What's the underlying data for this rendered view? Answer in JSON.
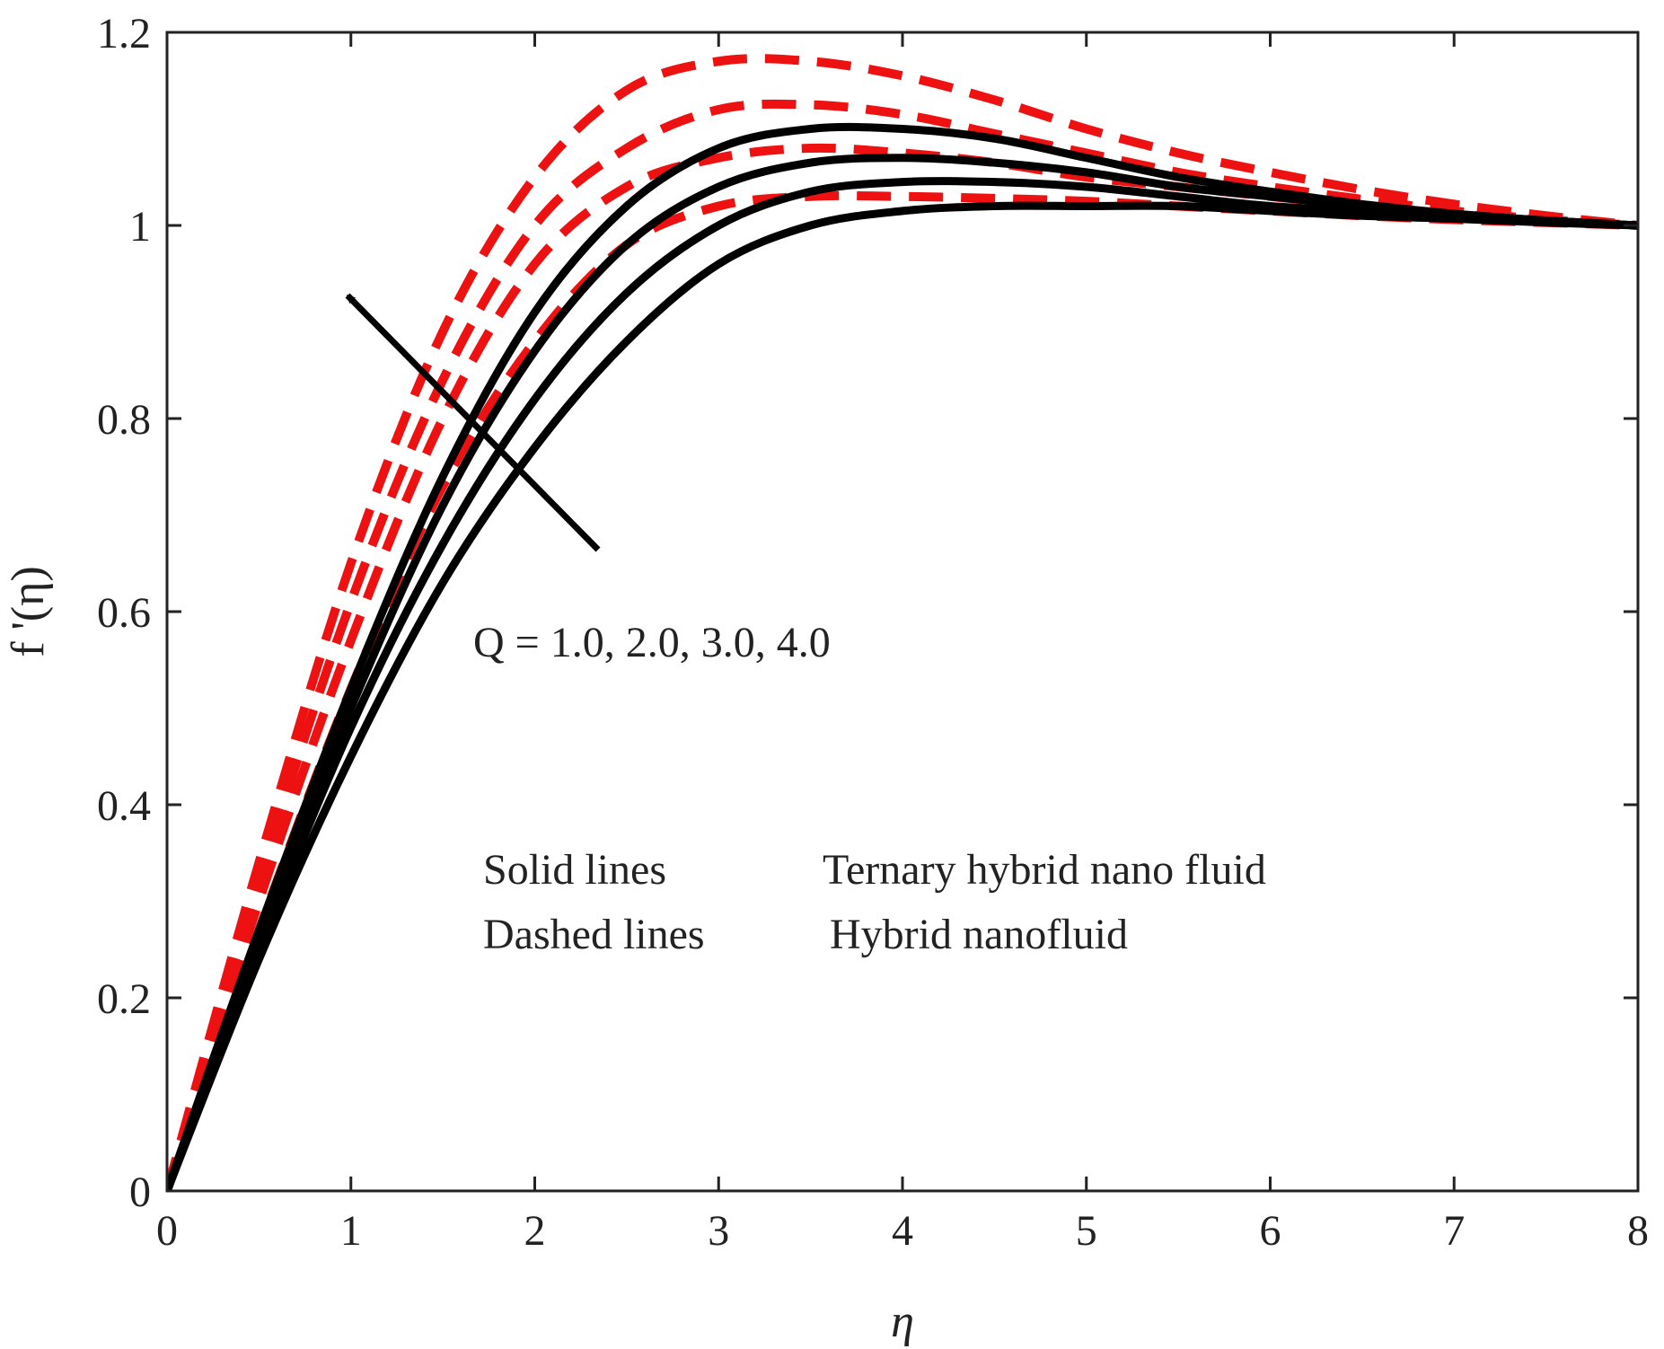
{
  "chart_data": {
    "type": "line",
    "title": "",
    "xlabel": "η",
    "ylabel": "f '(η)",
    "xlim": [
      0,
      8
    ],
    "ylim": [
      0,
      1.2
    ],
    "x_ticks": [
      0,
      1,
      2,
      3,
      4,
      5,
      6,
      7,
      8
    ],
    "y_ticks": [
      0,
      0.2,
      0.4,
      0.6,
      0.8,
      1,
      1.2
    ],
    "x_tick_labels": [
      "0",
      "1",
      "2",
      "3",
      "4",
      "5",
      "6",
      "7",
      "8"
    ],
    "y_tick_labels": [
      "0",
      "0.2",
      "0.4",
      "0.6",
      "0.8",
      "1",
      "1.2"
    ],
    "grid": false,
    "x": [
      0,
      0.5,
      1,
      1.5,
      2,
      2.5,
      3,
      3.5,
      4,
      4.5,
      5,
      5.5,
      6,
      6.5,
      7,
      7.5,
      8
    ],
    "series": [
      {
        "name": "Ternary hybrid nano fluid, Q = 1.0",
        "style": "solid",
        "color": "#000000",
        "values": [
          0,
          0.24,
          0.45,
          0.63,
          0.77,
          0.88,
          0.96,
          1.0,
          1.015,
          1.02,
          1.02,
          1.02,
          1.015,
          1.01,
          1.007,
          1.003,
          1.0
        ]
      },
      {
        "name": "Ternary hybrid nano fluid, Q = 2.0",
        "style": "solid",
        "color": "#000000",
        "values": [
          0,
          0.25,
          0.48,
          0.67,
          0.82,
          0.93,
          1.0,
          1.035,
          1.045,
          1.045,
          1.04,
          1.03,
          1.02,
          1.015,
          1.01,
          1.005,
          1.0
        ]
      },
      {
        "name": "Ternary hybrid nano fluid, Q = 3.0",
        "style": "solid",
        "color": "#000000",
        "values": [
          0,
          0.26,
          0.5,
          0.71,
          0.87,
          0.98,
          1.04,
          1.065,
          1.07,
          1.065,
          1.055,
          1.04,
          1.03,
          1.02,
          1.012,
          1.005,
          1.0
        ]
      },
      {
        "name": "Ternary hybrid nano fluid, Q = 4.0",
        "style": "solid",
        "color": "#000000",
        "values": [
          0,
          0.27,
          0.52,
          0.74,
          0.91,
          1.02,
          1.08,
          1.1,
          1.1,
          1.09,
          1.07,
          1.05,
          1.035,
          1.022,
          1.012,
          1.005,
          1.0
        ]
      },
      {
        "name": "Hybrid nanofluid, Q = 1.0",
        "style": "dashed",
        "color": "#ee1111",
        "values": [
          0,
          0.27,
          0.52,
          0.73,
          0.88,
          0.98,
          1.02,
          1.03,
          1.03,
          1.028,
          1.025,
          1.02,
          1.015,
          1.01,
          1.006,
          1.003,
          1.0
        ]
      },
      {
        "name": "Hybrid nanofluid, Q = 2.0",
        "style": "dashed",
        "color": "#ee1111",
        "values": [
          0,
          0.3,
          0.57,
          0.8,
          0.96,
          1.04,
          1.07,
          1.08,
          1.075,
          1.065,
          1.05,
          1.04,
          1.03,
          1.02,
          1.012,
          1.005,
          1.0
        ]
      },
      {
        "name": "Hybrid nanofluid, Q = 3.0",
        "style": "dashed",
        "color": "#ee1111",
        "values": [
          0,
          0.32,
          0.61,
          0.84,
          1.0,
          1.08,
          1.12,
          1.125,
          1.115,
          1.095,
          1.075,
          1.055,
          1.04,
          1.027,
          1.015,
          1.006,
          1.0
        ]
      },
      {
        "name": "Hybrid nanofluid, Q = 4.0",
        "style": "dashed",
        "color": "#ee1111",
        "values": [
          0,
          0.34,
          0.65,
          0.89,
          1.05,
          1.14,
          1.17,
          1.17,
          1.155,
          1.13,
          1.1,
          1.075,
          1.055,
          1.037,
          1.022,
          1.01,
          1.0
        ]
      }
    ],
    "annotations": {
      "arrow_label": "Q = 1.0, 2.0, 3.0, 4.0",
      "legend": [
        {
          "key": "Solid lines",
          "value": "Ternary hybrid nano fluid"
        },
        {
          "key": "Dashed lines",
          "value": "Hybrid nanofluid"
        }
      ]
    }
  }
}
